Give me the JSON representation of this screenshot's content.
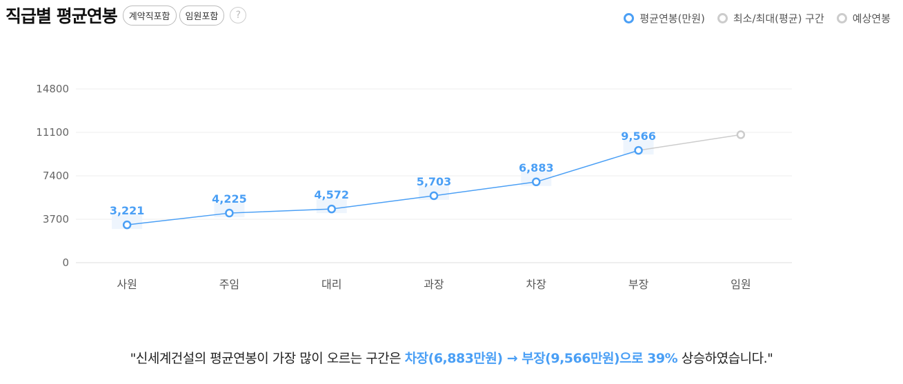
{
  "header": {
    "title": "직급별 평균연봉",
    "pills": [
      "계약직포함",
      "임원포함"
    ],
    "help_glyph": "?"
  },
  "legend": [
    {
      "label": "평균연봉(만원)",
      "color": "#4a9ff5"
    },
    {
      "label": "최소/최대(평균) 구간",
      "color": "#cccccc"
    },
    {
      "label": "예상연봉",
      "color": "#cccccc"
    }
  ],
  "chart_data": {
    "type": "line",
    "categories": [
      "사원",
      "주임",
      "대리",
      "과장",
      "차장",
      "부장",
      "임원"
    ],
    "yticks": [
      0,
      3700,
      7400,
      11100,
      14800
    ],
    "ylim": [
      0,
      14800
    ],
    "grid": true,
    "series": [
      {
        "name": "평균연봉(만원)",
        "color": "#4a9ff5",
        "values": [
          3221,
          4225,
          4572,
          5703,
          6883,
          9566,
          null
        ],
        "labels": [
          "3,221",
          "4,225",
          "4,572",
          "5,703",
          "6,883",
          "9,566",
          ""
        ]
      },
      {
        "name": "예상연봉",
        "color": "#cccccc",
        "values": [
          null,
          null,
          null,
          null,
          null,
          9566,
          10900
        ]
      }
    ]
  },
  "summary": {
    "prefix": "\"신세계건설의 평균연봉이 가장 많이 오르는 구간은 ",
    "highlight": "차장(6,883만원) → 부장(9,566만원)으로 39%",
    "suffix": " 상승하였습니다.\""
  }
}
